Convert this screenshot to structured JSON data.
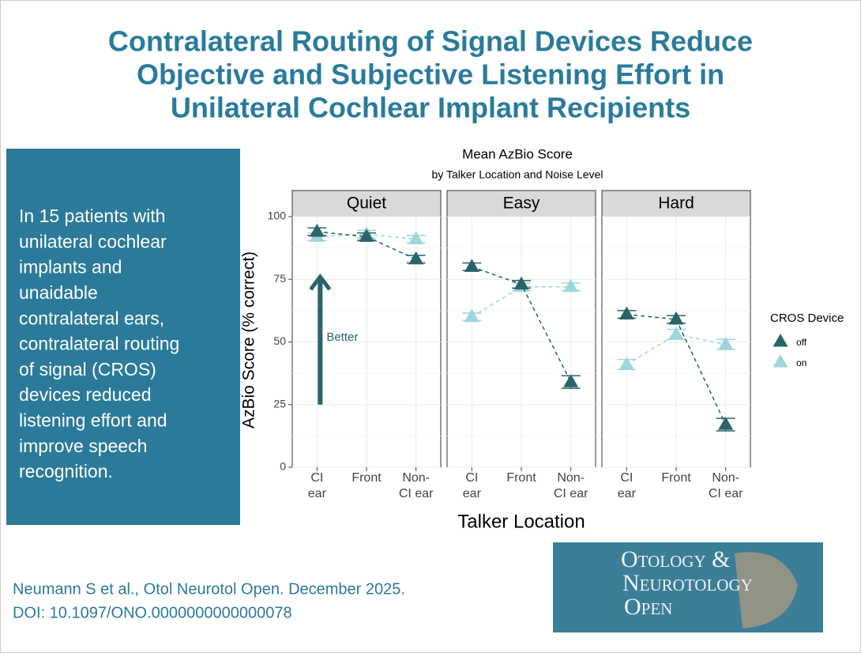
{
  "title_lines": [
    "Contralateral Routing of Signal Devices Reduce",
    "Objective and Subjective Listening Effort in",
    "Unilateral Cochlear Implant Recipients"
  ],
  "summary_lines": [
    "In 15 patients with",
    "unilateral cochlear",
    "implants  and",
    "unaidable",
    "contralateral ears,",
    "contralateral routing",
    "of signal (CROS)",
    "devices reduced",
    "listening effort and",
    "improve speech",
    "recognition."
  ],
  "citation": [
    "Neumann S et al., Otol Neurotol Open. December 2025.",
    "DOI: 10.1097/ONO.0000000000000078"
  ],
  "logo_lines": [
    "Otology &",
    "Neurotology",
    "Open"
  ],
  "chart_data": {
    "type": "line",
    "title": "Mean AzBio Score",
    "subtitle": "by Talker Location and Noise Level",
    "xlabel": "Talker Location",
    "ylabel": "AzBio Score (% correct)",
    "legend_title": "CROS Device",
    "categories": [
      [
        "CI",
        "ear"
      ],
      [
        "Front"
      ],
      [
        "Non-",
        "CI ear"
      ]
    ],
    "ylim": [
      0,
      100
    ],
    "yticks": [
      0,
      25,
      50,
      75,
      100
    ],
    "grid": true,
    "series": [
      {
        "name": "off",
        "color": "#2a6468"
      },
      {
        "name": "on",
        "color": "#9fd6dc"
      }
    ],
    "panels": [
      {
        "name": "Quiet",
        "values": [
          [
            94,
            92,
            83
          ],
          [
            92,
            93,
            91
          ]
        ],
        "errors": [
          [
            1.5,
            1.5,
            1.5
          ],
          [
            1.5,
            1.5,
            1.5
          ]
        ]
      },
      {
        "name": "Easy",
        "values": [
          [
            80,
            73,
            34
          ],
          [
            60,
            72,
            72
          ]
        ],
        "errors": [
          [
            1.5,
            1.5,
            2.5
          ],
          [
            1.5,
            1.5,
            1.5
          ]
        ]
      },
      {
        "name": "Hard",
        "values": [
          [
            61,
            59,
            17
          ],
          [
            41,
            53,
            49
          ]
        ],
        "errors": [
          [
            1.5,
            1.5,
            2.5
          ],
          [
            2,
            2,
            2
          ]
        ]
      }
    ],
    "annotation": {
      "text": "Better",
      "from": 25,
      "to": 76
    }
  }
}
